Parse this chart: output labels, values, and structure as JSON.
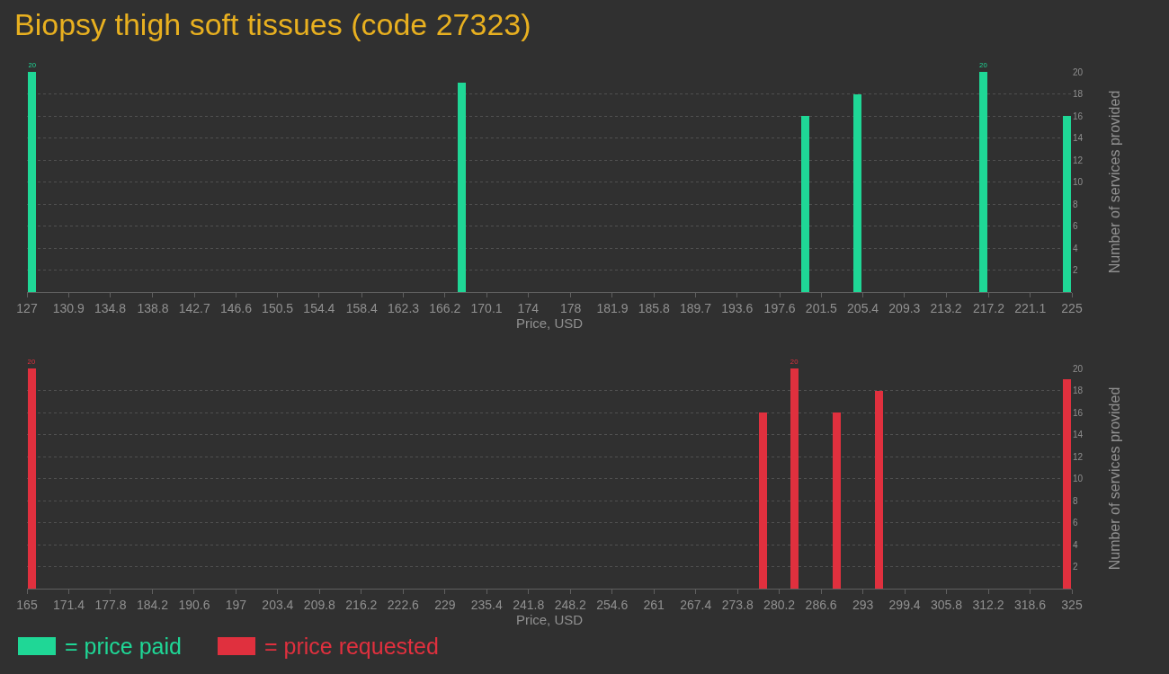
{
  "chart_data": [
    {
      "type": "bar",
      "title": "Biopsy thigh soft tissues (code 27323)",
      "xlabel": "Price, USD",
      "ylabel": "Number of services provided",
      "x": [
        127.5,
        167.8,
        200.0,
        204.9,
        216.7,
        224.5
      ],
      "series": [
        {
          "name": "= price paid",
          "color": "#1fd796",
          "values": [
            20,
            19,
            16,
            18,
            20,
            16
          ],
          "value_labels": [
            "20",
            null,
            null,
            null,
            "20",
            null
          ]
        }
      ],
      "xlim": [
        127,
        225
      ],
      "xticks": [
        127,
        130.9,
        134.8,
        138.8,
        142.7,
        146.6,
        150.5,
        154.4,
        158.4,
        162.3,
        166.2,
        170.1,
        174,
        178,
        181.9,
        185.8,
        189.7,
        193.6,
        197.6,
        201.5,
        205.4,
        209.3,
        213.2,
        217.2,
        221.1,
        225
      ],
      "ylim": [
        0,
        20
      ],
      "yticks": [
        2,
        4,
        6,
        8,
        10,
        12,
        14,
        16,
        18,
        20
      ],
      "grid": "y",
      "legend": "bottom"
    },
    {
      "type": "bar",
      "xlabel": "Price, USD",
      "ylabel": "Number of services provided",
      "x": [
        165.7,
        277.7,
        282.5,
        289.0,
        295.4,
        324.2
      ],
      "series": [
        {
          "name": "= price requested",
          "color": "#e0303e",
          "values": [
            20,
            16,
            20,
            16,
            18,
            19
          ],
          "value_labels": [
            "20",
            null,
            "20",
            null,
            null,
            null
          ]
        }
      ],
      "xlim": [
        165,
        325
      ],
      "xticks": [
        165,
        171.4,
        177.8,
        184.2,
        190.6,
        197,
        203.4,
        209.8,
        216.2,
        222.6,
        229,
        235.4,
        241.8,
        248.2,
        254.6,
        261,
        267.4,
        273.8,
        280.2,
        286.6,
        293,
        299.4,
        305.8,
        312.2,
        318.6,
        325
      ],
      "ylim": [
        0,
        20
      ],
      "yticks": [
        2,
        4,
        6,
        8,
        10,
        12,
        14,
        16,
        18,
        20
      ],
      "grid": "y",
      "legend": "bottom"
    }
  ]
}
